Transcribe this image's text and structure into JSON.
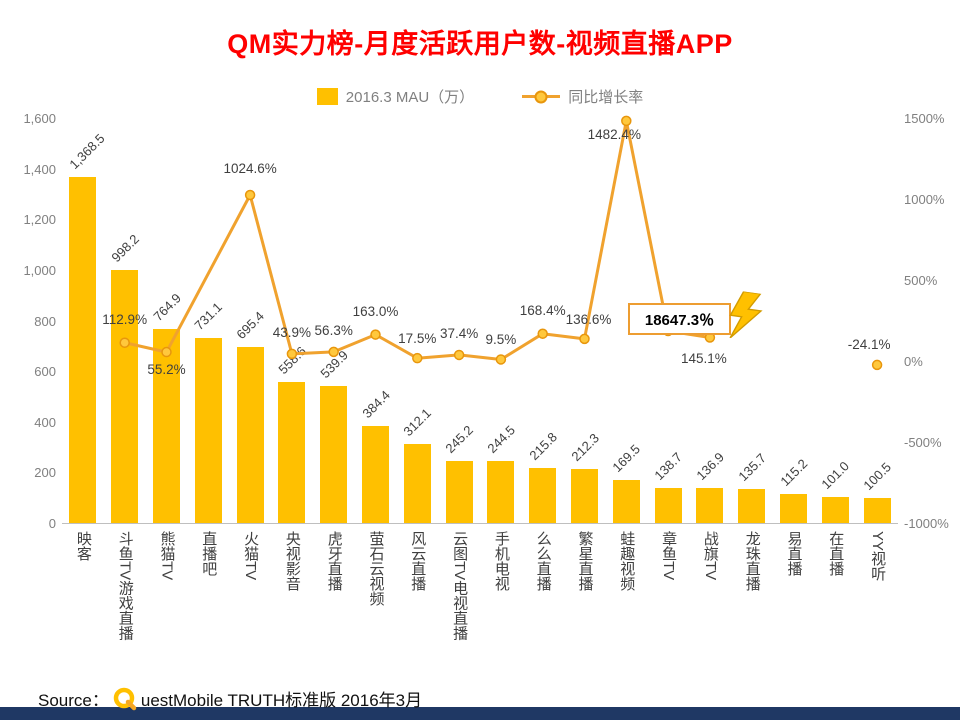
{
  "title": "QM实力榜-月度活跃用户数-视频直播APP",
  "legend": {
    "bars": "2016.3 MAU（万）",
    "line": "同比增长率"
  },
  "chart_data": {
    "type": "bar+line",
    "title": "QM实力榜-月度活跃用户数-视频直播APP",
    "legend_position": "top",
    "grid": false,
    "categories": [
      "映客",
      "斗鱼TV游戏直播",
      "熊猫TV",
      "直播吧",
      "火猫TV",
      "央视影音",
      "虎牙直播",
      "萤石云视频",
      "风云直播",
      "云图TV电视直播",
      "手机电视",
      "么么直播",
      "繁星直播",
      "蛙趣视频",
      "章鱼TV",
      "战旗TV",
      "龙珠直播",
      "易直播",
      "在直播",
      "YY视听"
    ],
    "series": [
      {
        "name": "2016.3 MAU（万）",
        "type": "bar",
        "color": "#FFC000",
        "values": [
          1368.5,
          998.2,
          764.9,
          731.1,
          695.4,
          558.6,
          539.9,
          384.4,
          312.1,
          245.2,
          244.5,
          215.8,
          212.3,
          169.5,
          138.7,
          136.9,
          135.7,
          115.2,
          101.0,
          100.5
        ]
      },
      {
        "name": "同比增长率",
        "type": "line",
        "unit": "%",
        "color": "#F0A22E",
        "values": [
          null,
          112.9,
          55.2,
          null,
          1024.6,
          43.9,
          56.3,
          163.0,
          17.5,
          37.4,
          9.5,
          168.4,
          136.6,
          1482.4,
          18647.3,
          145.1,
          null,
          null,
          null,
          -24.1
        ]
      }
    ],
    "bar_labels": [
      "1,368.5",
      "998.2",
      "764.9",
      "731.1",
      "695.4",
      "558.6",
      "539.9",
      "384.4",
      "312.1",
      "245.2",
      "244.5",
      "215.8",
      "212.3",
      "169.5",
      "138.7",
      "136.9",
      "135.7",
      "115.2",
      "101.0",
      "100.5"
    ],
    "line_labels": [
      null,
      "112.9%",
      "55.2%",
      null,
      "1024.6%",
      "43.9%",
      "56.3%",
      "163.0%",
      "17.5%",
      "37.4%",
      "9.5%",
      "168.4%",
      "136.6%",
      "1482.4%",
      "18647.3％",
      "145.1%",
      null,
      null,
      null,
      "-24.1%"
    ],
    "left_axis": {
      "min": 0,
      "max": 1600,
      "ticks": [
        "1,600",
        "1,400",
        "1,200",
        "1,000",
        "800",
        "600",
        "400",
        "200",
        "0"
      ]
    },
    "right_axis": {
      "min": -1000,
      "max": 1500,
      "ticks": [
        "1500%",
        "1000%",
        "500%",
        "0%",
        "-500%",
        "-1000%"
      ]
    },
    "offscale_point": {
      "category": "章鱼TV",
      "value": 18647.3,
      "label": "18647.3％"
    }
  },
  "annotations": {
    "offscale_label": "18647.3％"
  },
  "source": {
    "prefix": "Source：",
    "logo_letter": "Q",
    "rest": "uestMobile TRUTH标准版 2016年3月"
  }
}
